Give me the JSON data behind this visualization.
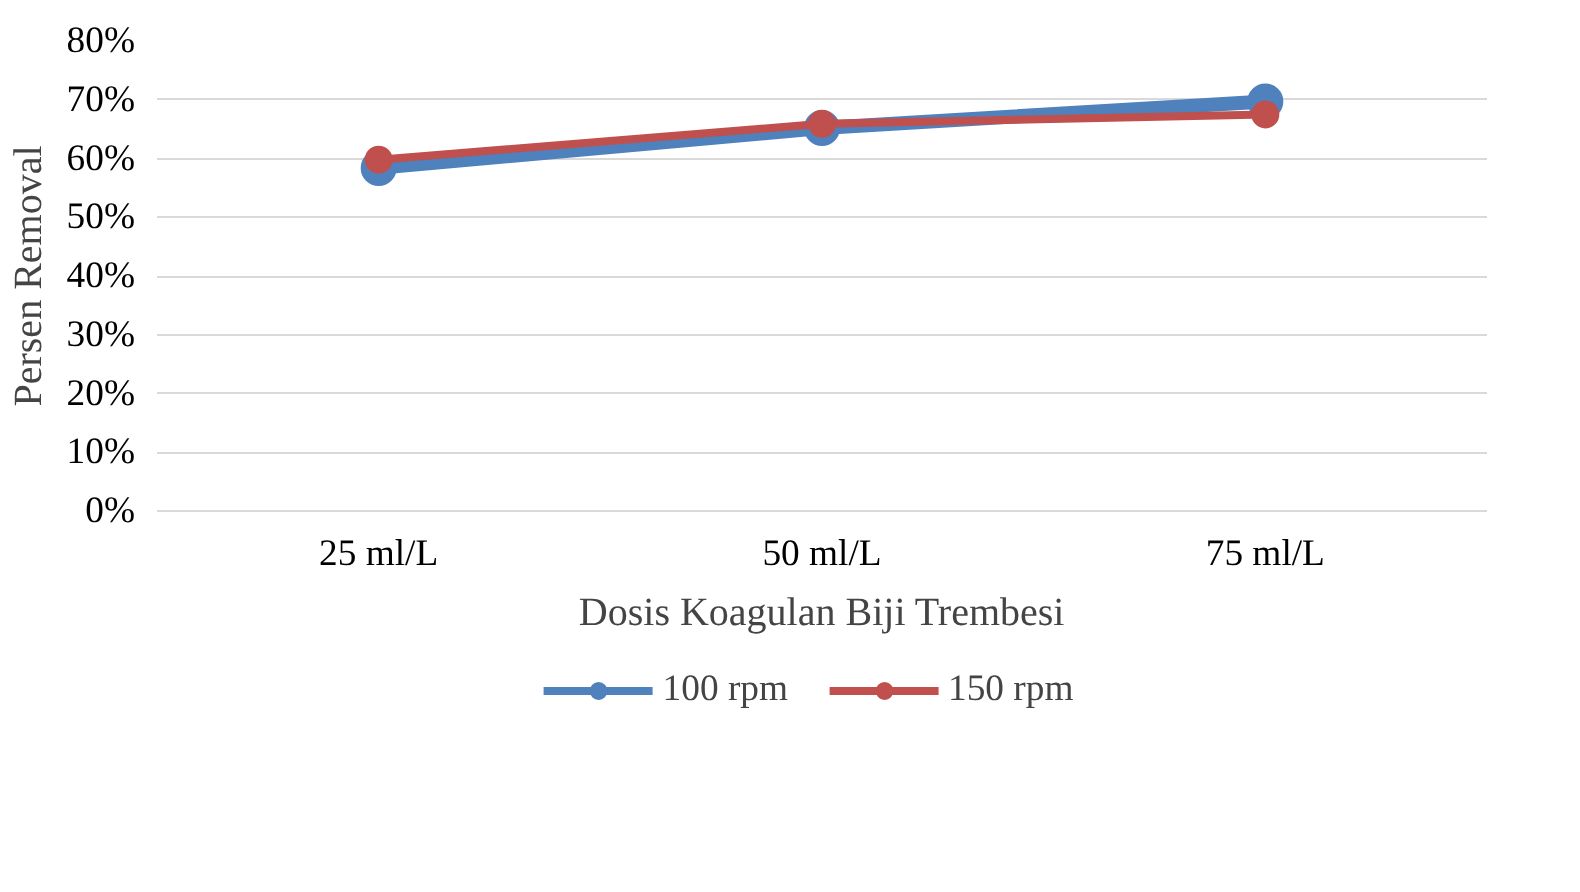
{
  "chart_data": {
    "type": "line",
    "xlabel": "Dosis Koagulan Biji Trembesi",
    "ylabel": "Persen Removal",
    "categories": [
      "25 ml/L",
      "50 ml/L",
      "75 ml/L"
    ],
    "series": [
      {
        "name": "100 rpm",
        "color": "#4f81bd",
        "values": [
          58.4,
          65.2,
          69.7
        ]
      },
      {
        "name": "150 rpm",
        "color": "#c0504d",
        "values": [
          59.8,
          65.9,
          67.5
        ]
      }
    ],
    "ylim": [
      0,
      80
    ],
    "yticks": [
      {
        "value": 0,
        "label": "0%"
      },
      {
        "value": 10,
        "label": "10%"
      },
      {
        "value": 20,
        "label": "20%"
      },
      {
        "value": 30,
        "label": "30%"
      },
      {
        "value": 40,
        "label": "40%"
      },
      {
        "value": 50,
        "label": "50%"
      },
      {
        "value": 60,
        "label": "60%"
      },
      {
        "value": 70,
        "label": "70%"
      },
      {
        "value": 80,
        "label": "80%"
      }
    ],
    "grid": "y",
    "legend": "bottom",
    "marker": "circle",
    "line_style": "solid"
  }
}
